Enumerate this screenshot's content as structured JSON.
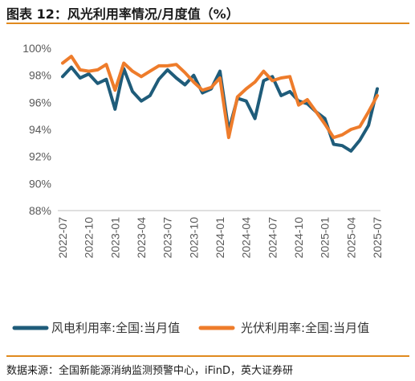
{
  "header": {
    "title": "图表 12：风光利用率情况/月度值（%）"
  },
  "footer": {
    "source": "数据来源：全国新能源消纳监测预警中心，iFinD，英大证券研"
  },
  "chart_data": {
    "type": "line",
    "title": "",
    "xlabel": "",
    "ylabel": "",
    "ylim": [
      88,
      100
    ],
    "yticks": [
      "88%",
      "90%",
      "92%",
      "94%",
      "96%",
      "98%",
      "100%"
    ],
    "ytick_values": [
      88,
      90,
      92,
      94,
      96,
      98,
      100
    ],
    "x": [
      "2022-07",
      "2022-08",
      "2022-09",
      "2022-10",
      "2022-11",
      "2022-12",
      "2023-01",
      "2023-02",
      "2023-03",
      "2023-04",
      "2023-05",
      "2023-06",
      "2023-07",
      "2023-08",
      "2023-09",
      "2023-10",
      "2023-11",
      "2023-12",
      "2024-01",
      "2024-02",
      "2024-03",
      "2024-04",
      "2024-05",
      "2024-06",
      "2024-07",
      "2024-08",
      "2024-09",
      "2024-10",
      "2024-11",
      "2024-12",
      "2025-01",
      "2025-02",
      "2025-03",
      "2025-04",
      "2025-05",
      "2025-06",
      "2025-07"
    ],
    "xtick_labels": [
      "2022-07",
      "2022-10",
      "2023-01",
      "2023-04",
      "2023-07",
      "2023-10",
      "2024-01",
      "2024-04",
      "2024-07",
      "2024-10",
      "2025-01",
      "2025-04",
      "2025-07"
    ],
    "grid": false,
    "legend_position": "bottom",
    "series": [
      {
        "name": "风电利用率:全国:当月值",
        "color": "#1f5c7a",
        "values": [
          97.9,
          98.6,
          97.8,
          98.1,
          97.4,
          97.7,
          95.5,
          98.5,
          96.8,
          96.1,
          96.5,
          97.7,
          98.4,
          97.8,
          97.3,
          98.0,
          96.7,
          97.0,
          98.3,
          93.9,
          96.3,
          96.1,
          94.8,
          97.6,
          97.9,
          96.5,
          96.8,
          96.1,
          95.9,
          95.3,
          94.8,
          92.9,
          92.8,
          92.4,
          93.2,
          94.3,
          97.0
        ]
      },
      {
        "name": "光伏利用率:全国:当月值",
        "color": "#ee7c2b",
        "values": [
          98.9,
          99.4,
          98.4,
          98.3,
          98.4,
          98.8,
          96.9,
          98.9,
          98.3,
          97.9,
          98.3,
          98.7,
          98.7,
          98.8,
          98.2,
          97.5,
          96.9,
          97.1,
          97.8,
          93.4,
          96.4,
          97.0,
          97.5,
          98.3,
          97.6,
          97.8,
          97.9,
          95.8,
          96.2,
          95.3,
          94.4,
          93.4,
          93.6,
          94.0,
          94.2,
          95.3,
          96.5
        ]
      }
    ]
  }
}
